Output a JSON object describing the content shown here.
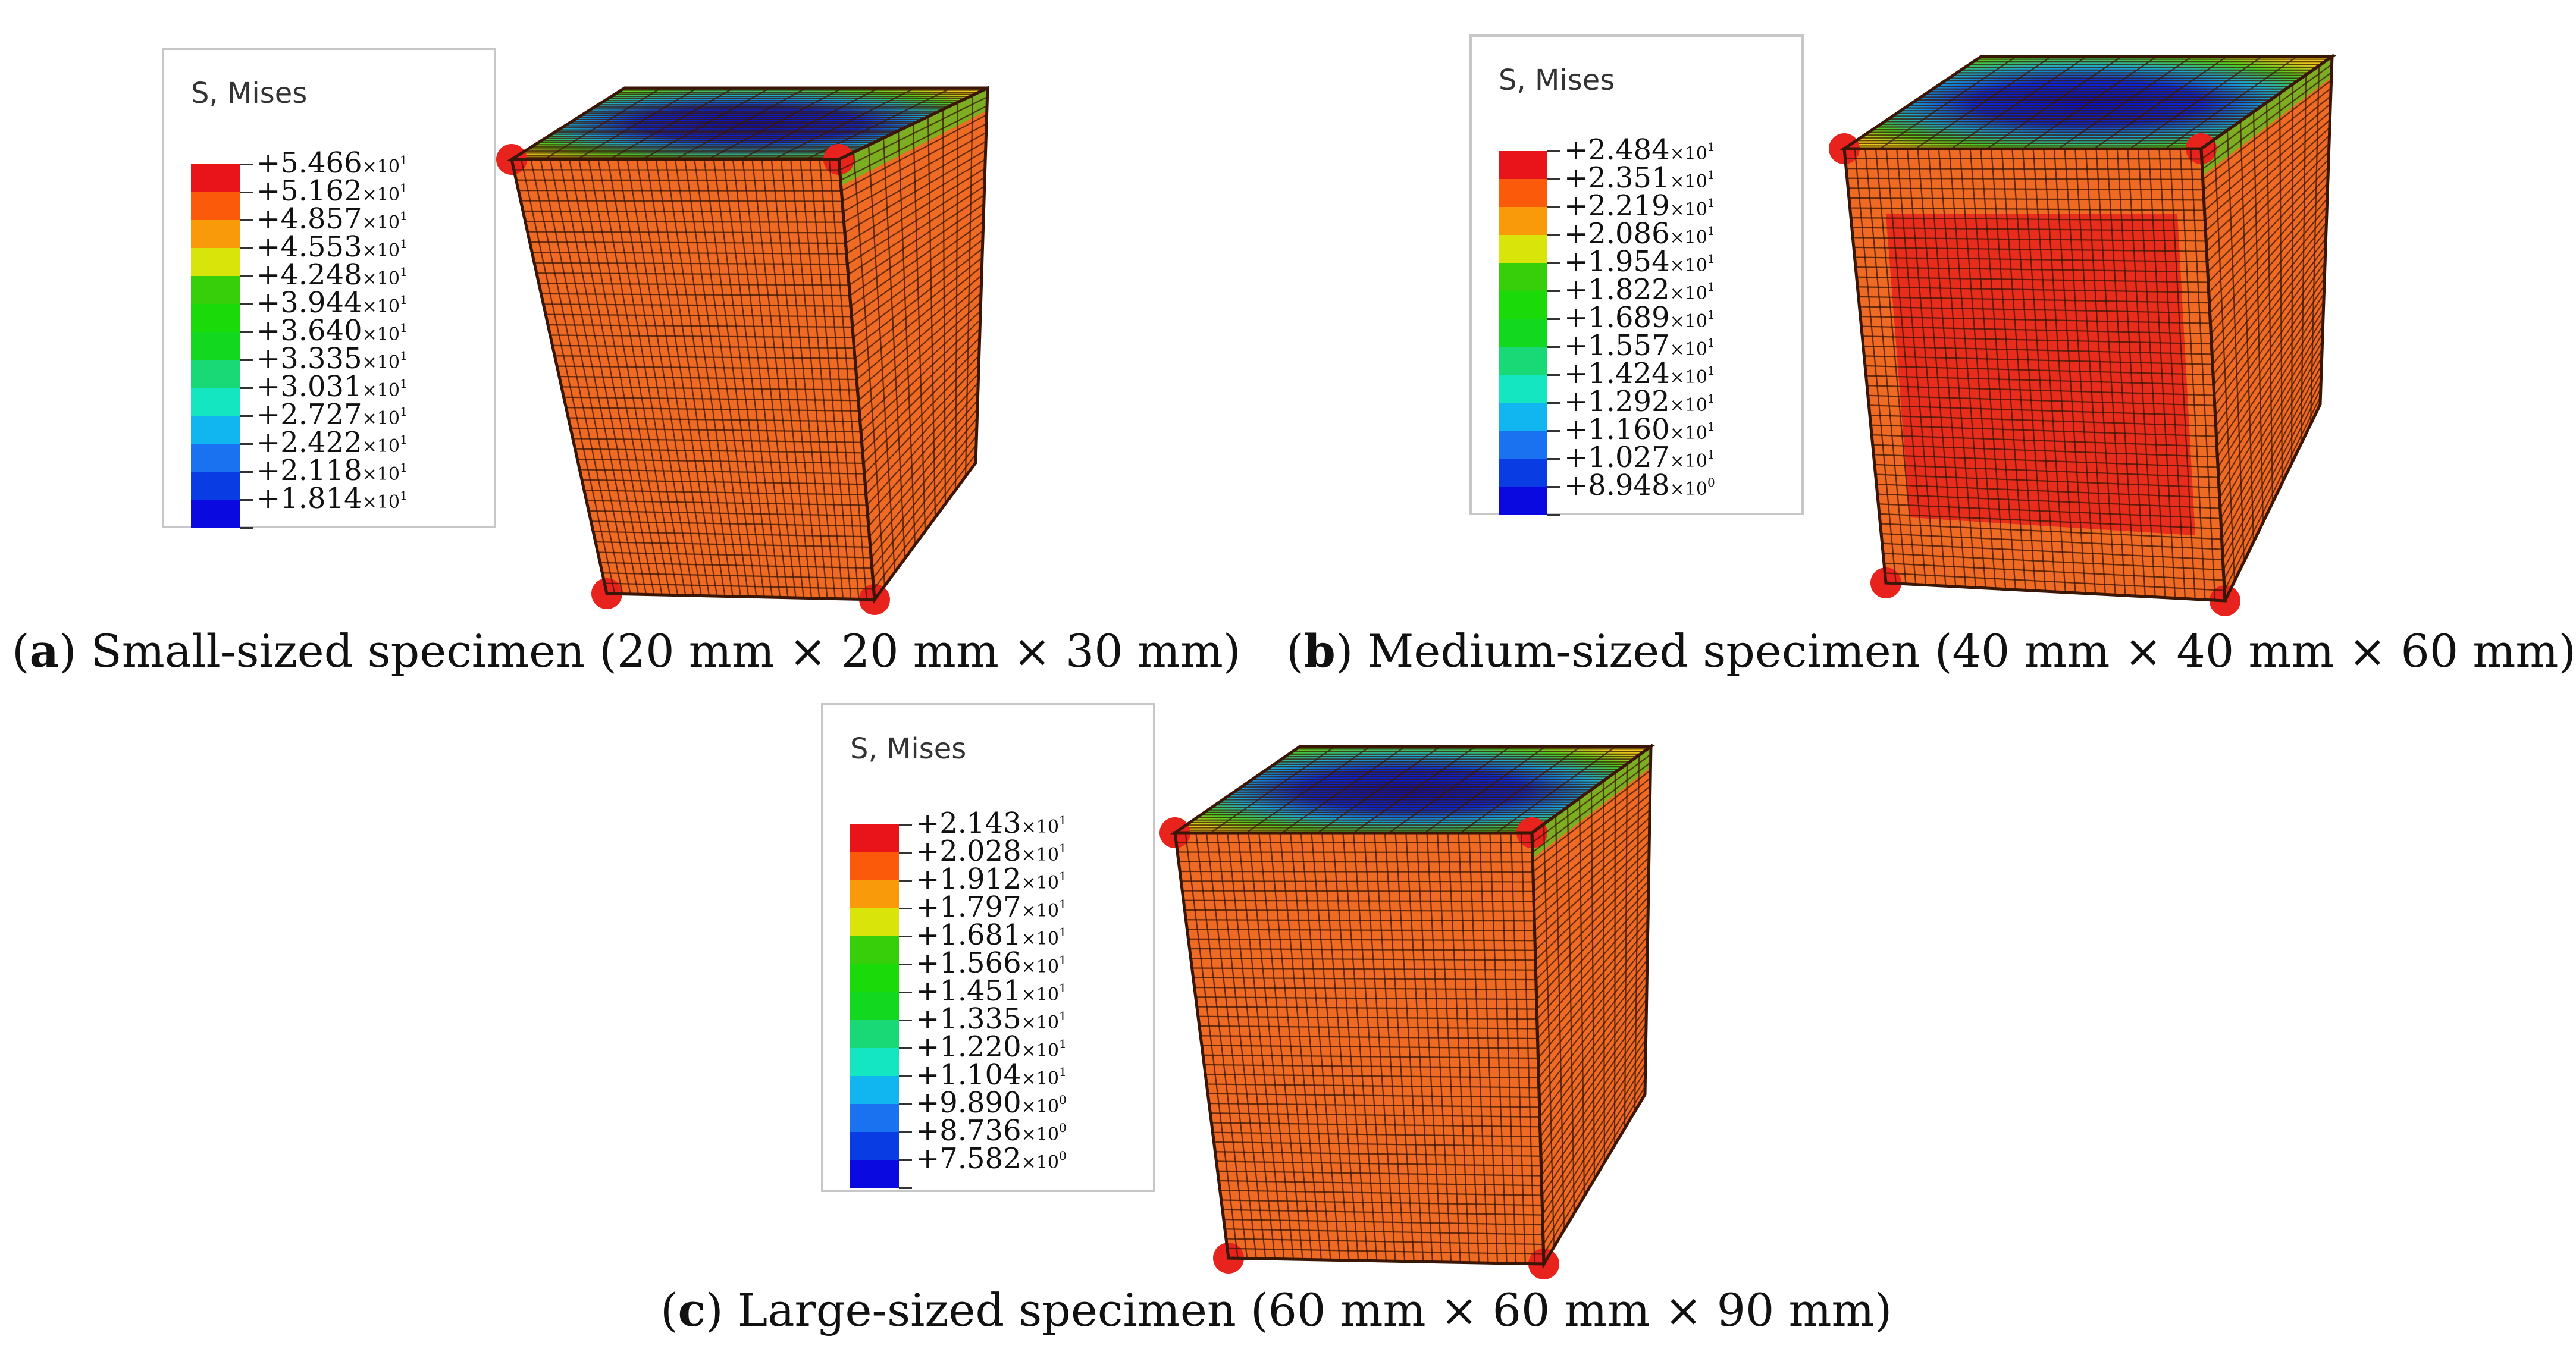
{
  "colors": {
    "scale": [
      "#e8141a",
      "#fa5a0a",
      "#f99a0a",
      "#d8e40a",
      "#36cf0a",
      "#1ada0a",
      "#12d820",
      "#19d876",
      "#14e6c2",
      "#11b6f0",
      "#1a72f0",
      "#0a3ce4",
      "#0a0ae0"
    ],
    "body": "#ef6a22",
    "mesh": "#3a1606",
    "hot": "#e8221c",
    "top_edge": "#4ccc22",
    "top_mid": "#1aa9d4",
    "top_center": "#0a10b8"
  },
  "panels": [
    {
      "id": "a",
      "legend": {
        "title": "S, Mises",
        "values": [
          {
            "m": "+5.466",
            "e": "1"
          },
          {
            "m": "+5.162",
            "e": "1"
          },
          {
            "m": "+4.857",
            "e": "1"
          },
          {
            "m": "+4.553",
            "e": "1"
          },
          {
            "m": "+4.248",
            "e": "1"
          },
          {
            "m": "+3.944",
            "e": "1"
          },
          {
            "m": "+3.640",
            "e": "1"
          },
          {
            "m": "+3.335",
            "e": "1"
          },
          {
            "m": "+3.031",
            "e": "1"
          },
          {
            "m": "+2.727",
            "e": "1"
          },
          {
            "m": "+2.422",
            "e": "1"
          },
          {
            "m": "+2.118",
            "e": "1"
          },
          {
            "m": "+1.814",
            "e": "1"
          }
        ]
      },
      "caption": {
        "letter": "a",
        "text": "Small-sized specimen (20 mm × 20 mm × 30 mm)"
      }
    },
    {
      "id": "b",
      "legend": {
        "title": "S, Mises",
        "values": [
          {
            "m": "+2.484",
            "e": "1"
          },
          {
            "m": "+2.351",
            "e": "1"
          },
          {
            "m": "+2.219",
            "e": "1"
          },
          {
            "m": "+2.086",
            "e": "1"
          },
          {
            "m": "+1.954",
            "e": "1"
          },
          {
            "m": "+1.822",
            "e": "1"
          },
          {
            "m": "+1.689",
            "e": "1"
          },
          {
            "m": "+1.557",
            "e": "1"
          },
          {
            "m": "+1.424",
            "e": "1"
          },
          {
            "m": "+1.292",
            "e": "1"
          },
          {
            "m": "+1.160",
            "e": "1"
          },
          {
            "m": "+1.027",
            "e": "1"
          },
          {
            "m": "+8.948",
            "e": "0"
          }
        ]
      },
      "caption": {
        "letter": "b",
        "text": "Medium-sized specimen (40 mm × 40 mm × 60 mm)"
      }
    },
    {
      "id": "c",
      "legend": {
        "title": "S, Mises",
        "values": [
          {
            "m": "+2.143",
            "e": "1"
          },
          {
            "m": "+2.028",
            "e": "1"
          },
          {
            "m": "+1.912",
            "e": "1"
          },
          {
            "m": "+1.797",
            "e": "1"
          },
          {
            "m": "+1.681",
            "e": "1"
          },
          {
            "m": "+1.566",
            "e": "1"
          },
          {
            "m": "+1.451",
            "e": "1"
          },
          {
            "m": "+1.335",
            "e": "1"
          },
          {
            "m": "+1.220",
            "e": "1"
          },
          {
            "m": "+1.104",
            "e": "1"
          },
          {
            "m": "+9.890",
            "e": "0"
          },
          {
            "m": "+8.736",
            "e": "0"
          },
          {
            "m": "+7.582",
            "e": "0"
          }
        ]
      },
      "caption": {
        "letter": "c",
        "text": "Large-sized specimen (60 mm × 60 mm × 90 mm)"
      }
    }
  ]
}
